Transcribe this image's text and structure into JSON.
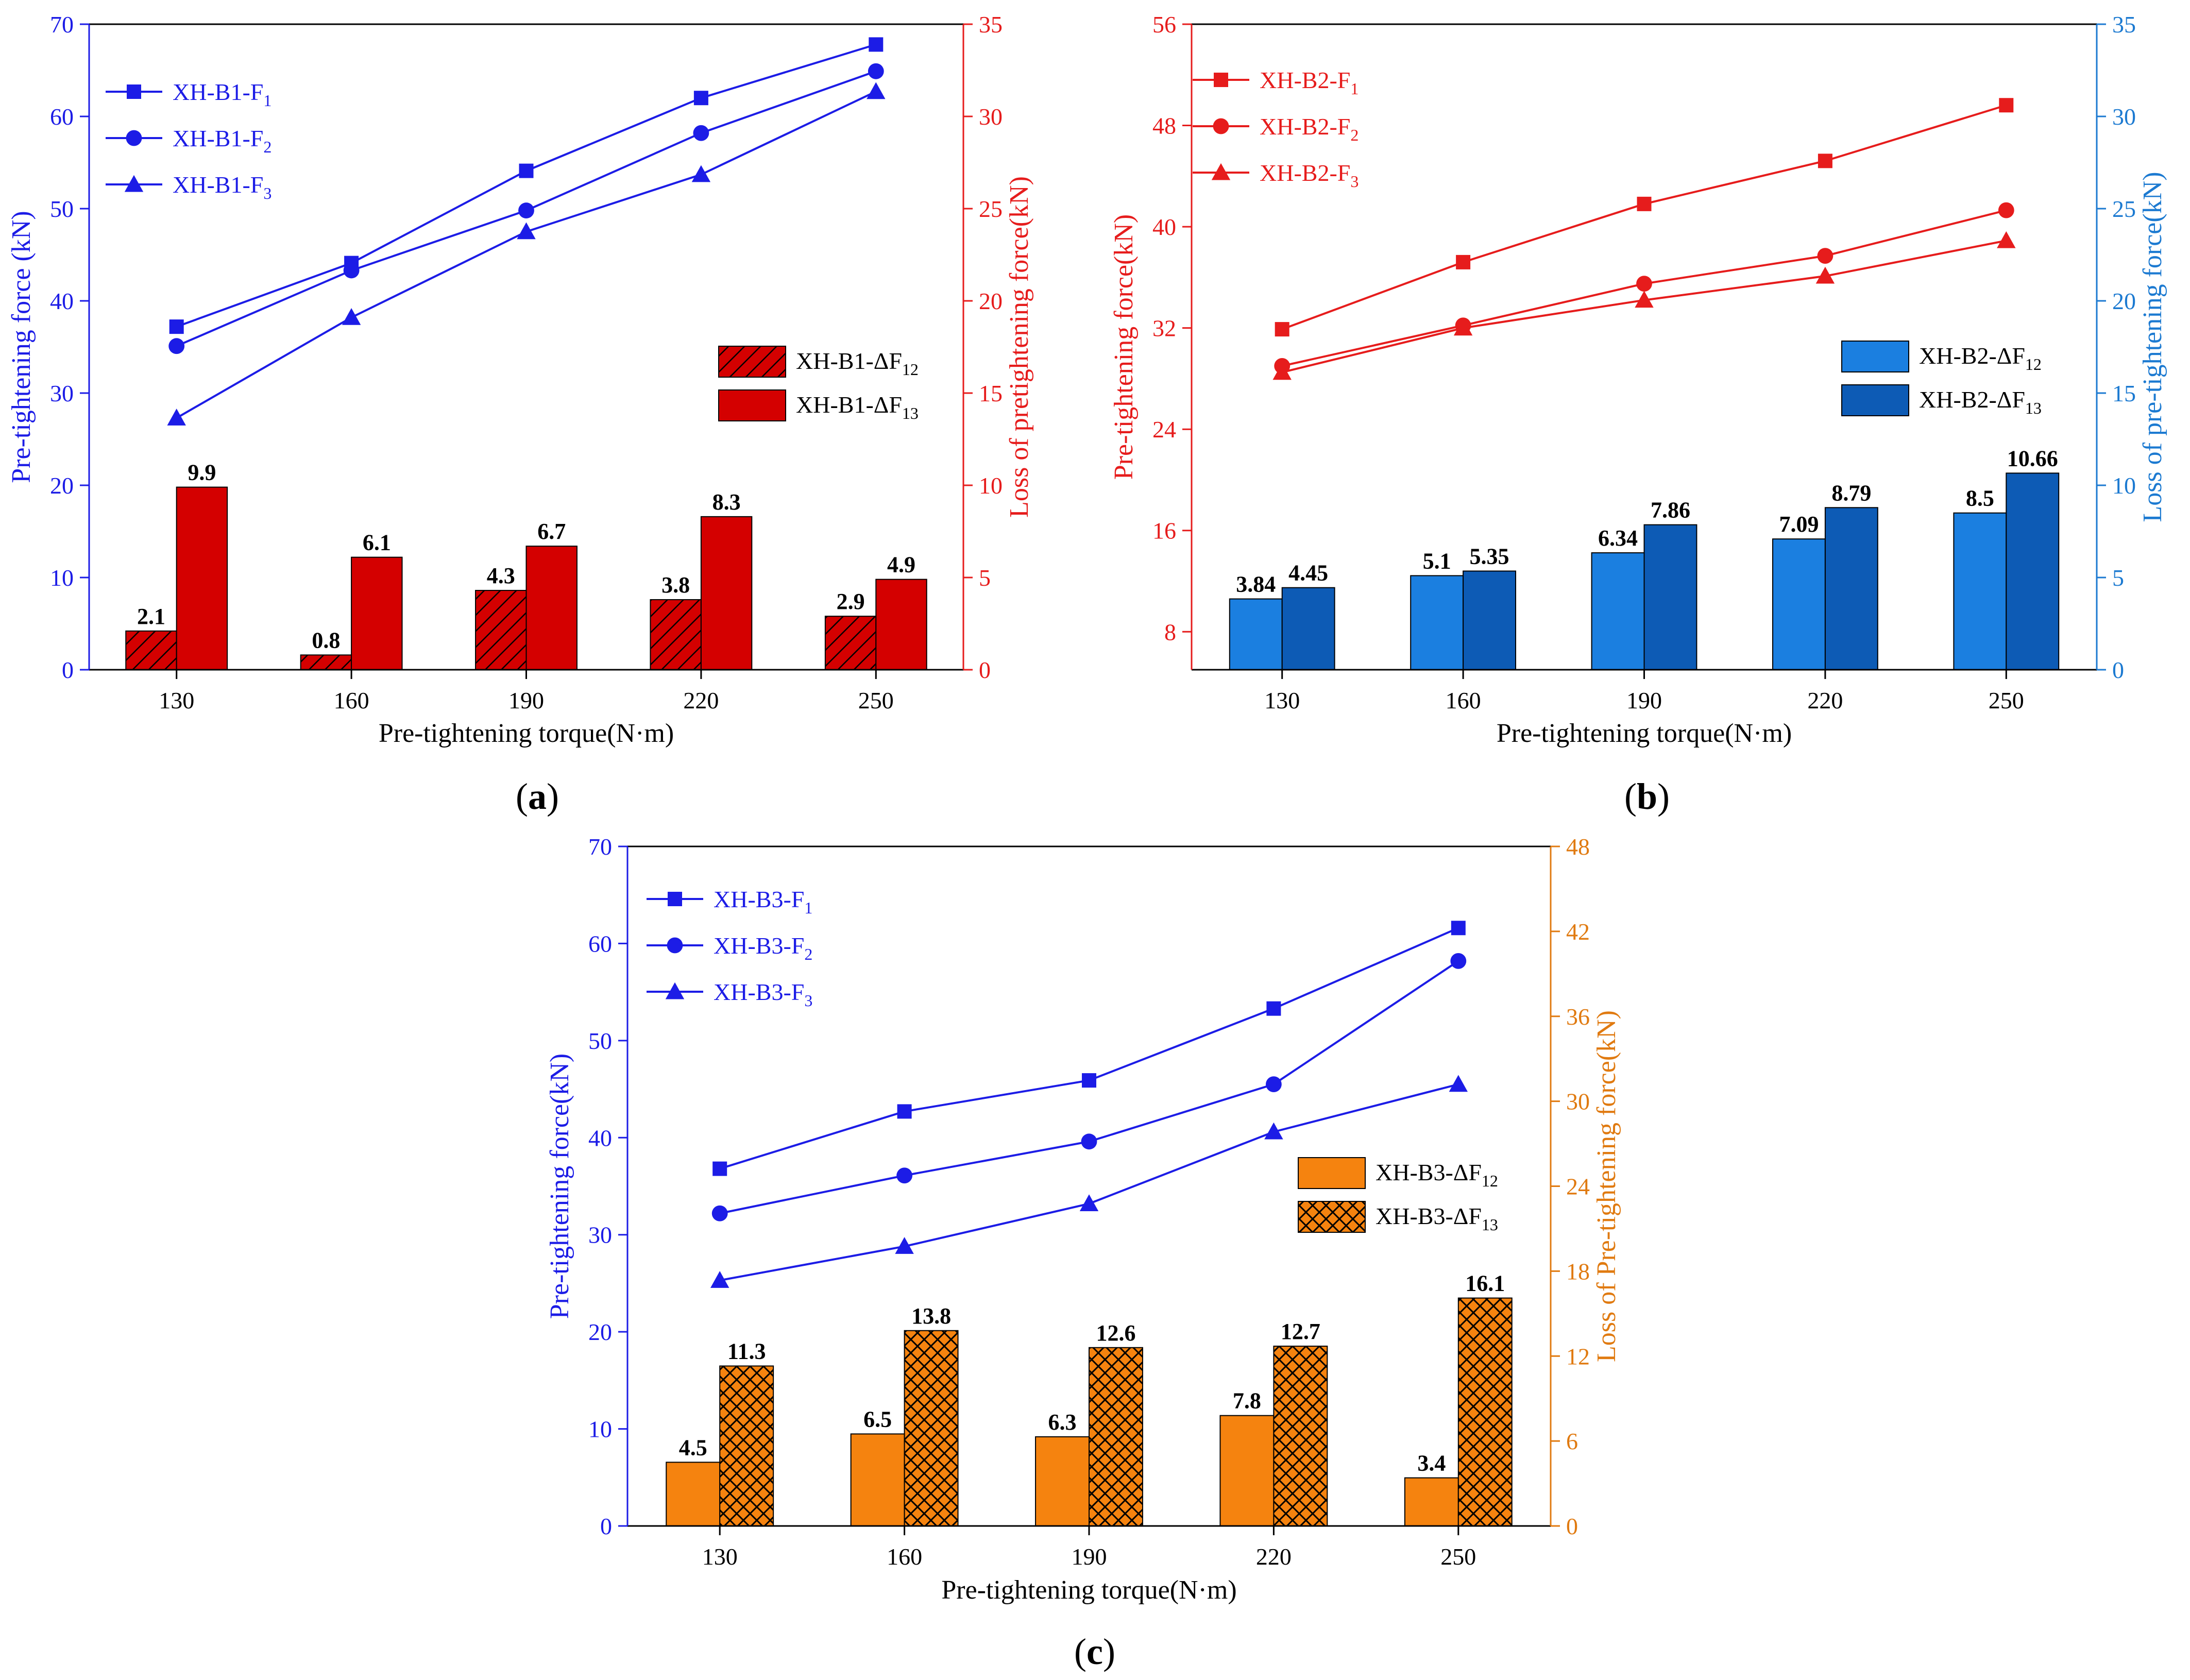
{
  "figure": {
    "panels": [
      {
        "prefix": "(",
        "letter": "a",
        "suffix": ")"
      },
      {
        "prefix": "(",
        "letter": "b",
        "suffix": ")"
      },
      {
        "prefix": "(",
        "letter": "c",
        "suffix": ")"
      }
    ]
  },
  "chart_data": [
    {
      "type": "bar+line",
      "panel": "a",
      "categories": [
        "130",
        "160",
        "190",
        "220",
        "250"
      ],
      "xlabel": "Pre-tightening torque(N·m)",
      "left_axis": {
        "label": "Pre-tightening force (kN)",
        "range": [
          0,
          70
        ],
        "ticks": [
          0,
          10,
          20,
          30,
          40,
          50,
          60,
          70
        ],
        "color": "#1c1ce6"
      },
      "right_axis": {
        "label": "Loss of pretightening force(kN)",
        "range": [
          0,
          35
        ],
        "ticks": [
          0,
          5,
          10,
          15,
          20,
          25,
          30,
          35
        ],
        "color": "#e61c1c"
      },
      "lines": [
        {
          "name": "XH-B1-F",
          "sub": "1",
          "marker": "square",
          "color": "#1c1ce6",
          "values": [
            37.2,
            44.1,
            54.1,
            62.0,
            67.8
          ]
        },
        {
          "name": "XH-B1-F",
          "sub": "2",
          "marker": "circle",
          "color": "#1c1ce6",
          "values": [
            35.1,
            43.3,
            49.8,
            58.2,
            64.9
          ]
        },
        {
          "name": "XH-B1-F",
          "sub": "3",
          "marker": "triangle",
          "color": "#1c1ce6",
          "values": [
            27.3,
            38.2,
            47.5,
            53.7,
            62.7
          ]
        }
      ],
      "bars": [
        {
          "name": "XH-B1-ΔF",
          "sub": "12",
          "fill": "#d40000",
          "pattern": "hatch",
          "values": [
            2.1,
            0.8,
            4.3,
            3.8,
            2.9
          ],
          "labels": [
            "2.1",
            "0.8",
            "4.3",
            "3.8",
            "2.9"
          ]
        },
        {
          "name": "XH-B1-ΔF",
          "sub": "13",
          "fill": "#d40000",
          "pattern": "solid",
          "values": [
            9.9,
            6.1,
            6.7,
            8.3,
            4.9
          ],
          "labels": [
            "9.9",
            "6.1",
            "6.7",
            "8.3",
            "4.9"
          ]
        }
      ]
    },
    {
      "type": "bar+line",
      "panel": "b",
      "categories": [
        "130",
        "160",
        "190",
        "220",
        "250"
      ],
      "xlabel": "Pre-tightening torque(N·m)",
      "left_axis": {
        "label": "Pre-tightening force(kN)",
        "range": [
          5,
          56
        ],
        "ticks": [
          8,
          16,
          24,
          32,
          40,
          48,
          56
        ],
        "color": "#e61c1c"
      },
      "right_axis": {
        "label": "Loss of pre-tightening force(kN)",
        "range": [
          0,
          35
        ],
        "ticks": [
          0,
          5,
          10,
          15,
          20,
          25,
          30,
          35
        ],
        "color": "#1c7ad1"
      },
      "lines": [
        {
          "name": "XH-B2-F",
          "sub": "1",
          "marker": "square",
          "color": "#e61c1c",
          "values": [
            31.9,
            37.2,
            41.8,
            45.2,
            49.6
          ]
        },
        {
          "name": "XH-B2-F",
          "sub": "2",
          "marker": "circle",
          "color": "#e61c1c",
          "values": [
            29.0,
            32.2,
            35.5,
            37.7,
            41.3
          ]
        },
        {
          "name": "XH-B2-F",
          "sub": "3",
          "marker": "triangle",
          "color": "#e61c1c",
          "values": [
            28.5,
            32.0,
            34.2,
            36.1,
            38.9
          ]
        }
      ],
      "bars": [
        {
          "name": "XH-B2-ΔF",
          "sub": "12",
          "fill": "#1b7fe0",
          "pattern": "solid",
          "values": [
            3.84,
            5.1,
            6.34,
            7.09,
            8.5
          ],
          "labels": [
            "3.84",
            "5.1",
            "6.34",
            "7.09",
            "8.5"
          ]
        },
        {
          "name": "XH-B2-ΔF",
          "sub": "13",
          "fill": "#0d5bb5",
          "pattern": "solid",
          "values": [
            4.45,
            5.35,
            7.86,
            8.79,
            10.66
          ],
          "labels": [
            "4.45",
            "5.35",
            "7.86",
            "8.79",
            "10.66"
          ]
        }
      ]
    },
    {
      "type": "bar+line",
      "panel": "c",
      "categories": [
        "130",
        "160",
        "190",
        "220",
        "250"
      ],
      "xlabel": "Pre-tightening torque(N·m)",
      "left_axis": {
        "label": "Pre-tightening force(kN)",
        "range": [
          0,
          70
        ],
        "ticks": [
          0,
          10,
          20,
          30,
          40,
          50,
          60,
          70
        ],
        "color": "#1c1ce6"
      },
      "right_axis": {
        "label": "Loss of Pre-tightening force(kN)",
        "range": [
          0,
          48
        ],
        "ticks": [
          0,
          6,
          12,
          18,
          24,
          30,
          36,
          42,
          48
        ],
        "color": "#e07a10"
      },
      "lines": [
        {
          "name": "XH-B3-F",
          "sub": "1",
          "marker": "square",
          "color": "#1c1ce6",
          "values": [
            36.8,
            42.7,
            45.9,
            53.3,
            61.6
          ]
        },
        {
          "name": "XH-B3-F",
          "sub": "2",
          "marker": "circle",
          "color": "#1c1ce6",
          "values": [
            32.2,
            36.1,
            39.6,
            45.5,
            58.2
          ]
        },
        {
          "name": "XH-B3-F",
          "sub": "3",
          "marker": "triangle",
          "color": "#1c1ce6",
          "values": [
            25.3,
            28.8,
            33.2,
            40.6,
            45.5
          ]
        }
      ],
      "bars": [
        {
          "name": "XH-B3-ΔF",
          "sub": "12",
          "fill": "#f5830f",
          "pattern": "solid",
          "values": [
            4.5,
            6.5,
            6.3,
            7.8,
            3.4
          ],
          "labels": [
            "4.5",
            "6.5",
            "6.3",
            "7.8",
            "3.4"
          ]
        },
        {
          "name": "XH-B3-ΔF",
          "sub": "13",
          "fill": "#f5830f",
          "pattern": "cross",
          "values": [
            11.3,
            13.8,
            12.6,
            12.7,
            16.1
          ],
          "labels": [
            "11.3",
            "13.8",
            "12.6",
            "12.7",
            "16.1"
          ]
        }
      ]
    }
  ]
}
